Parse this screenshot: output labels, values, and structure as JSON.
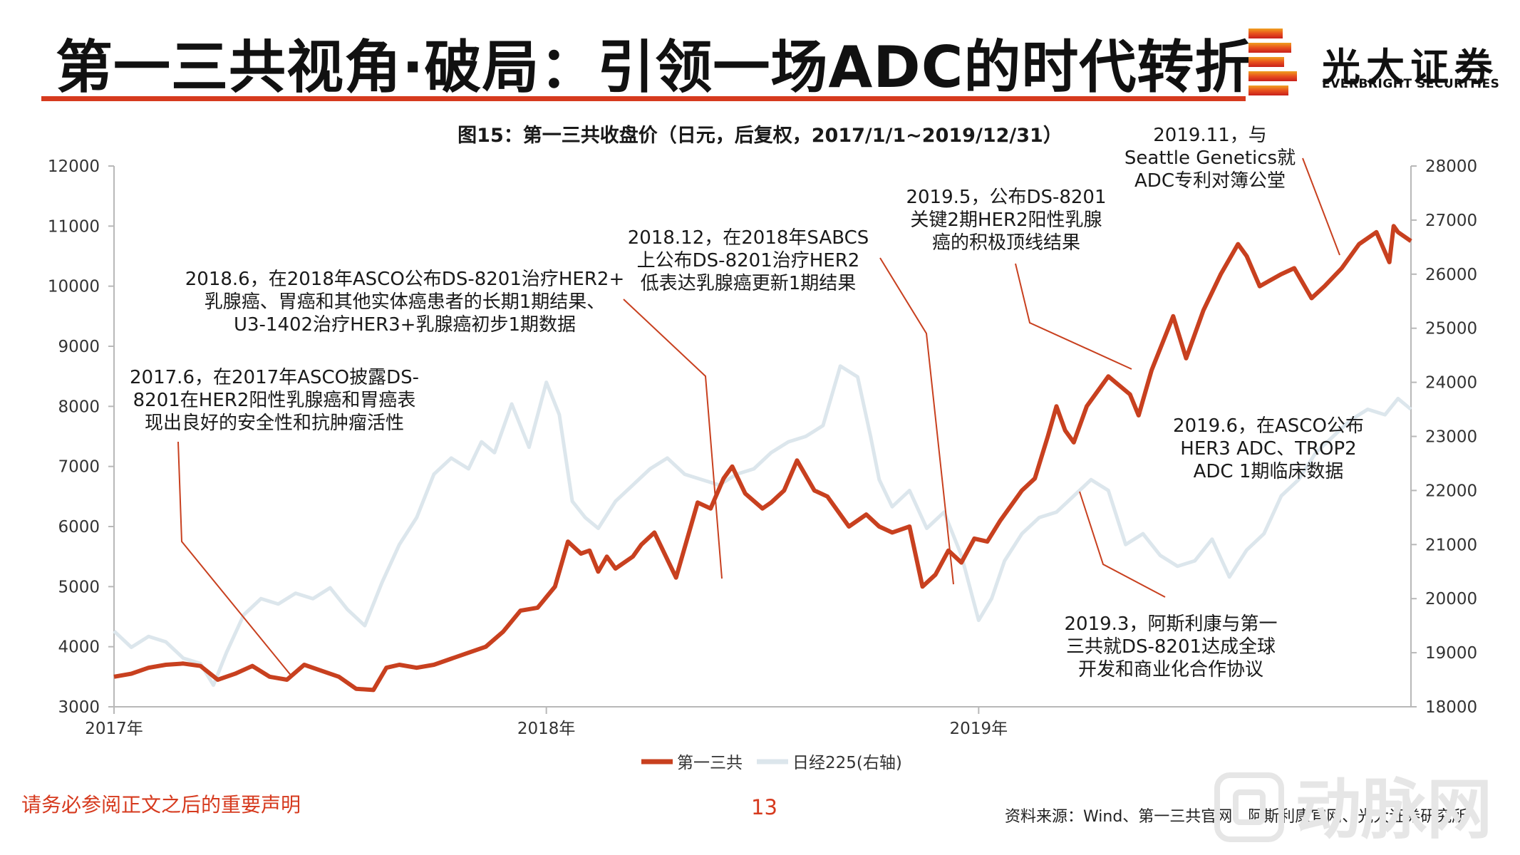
{
  "header": {
    "title": "第一三共视角·破局：引领一场ADC的时代转折",
    "logo_cn": "光大证券",
    "logo_en": "EVERBRIGHT SECURITIES"
  },
  "colors": {
    "brand_red": "#d63a1e",
    "series_main": "#c8401f",
    "series_index": "#dce6ec",
    "axis": "#b8b8b8",
    "callout": "#c8401f"
  },
  "chart_data": {
    "type": "line",
    "title": "图15：第一三共收盘价（日元，后复权，2017/1/1~2019/12/31）",
    "x_ticks": [
      "2017年",
      "2018年",
      "2019年"
    ],
    "x_range": [
      2017.0,
      2020.0
    ],
    "y_left": {
      "range": [
        3000,
        12000
      ],
      "ticks": [
        3000,
        4000,
        5000,
        6000,
        7000,
        8000,
        9000,
        10000,
        11000,
        12000
      ]
    },
    "y_right": {
      "range": [
        18000,
        28000
      ],
      "ticks": [
        18000,
        19000,
        20000,
        21000,
        22000,
        23000,
        24000,
        25000,
        26000,
        27000,
        28000
      ]
    },
    "legend": {
      "position": "bottom",
      "items": [
        "第一三共",
        "日经225(右轴)"
      ]
    },
    "series": [
      {
        "name": "第一三共",
        "axis": "left",
        "x": [
          2017.0,
          2017.04,
          2017.08,
          2017.12,
          2017.16,
          2017.2,
          2017.24,
          2017.28,
          2017.32,
          2017.36,
          2017.4,
          2017.44,
          2017.48,
          2017.52,
          2017.56,
          2017.6,
          2017.63,
          2017.66,
          2017.7,
          2017.74,
          2017.78,
          2017.82,
          2017.86,
          2017.9,
          2017.94,
          2017.98,
          2018.02,
          2018.05,
          2018.08,
          2018.1,
          2018.12,
          2018.14,
          2018.16,
          2018.2,
          2018.22,
          2018.25,
          2018.3,
          2018.35,
          2018.38,
          2018.41,
          2018.43,
          2018.46,
          2018.5,
          2018.52,
          2018.55,
          2018.58,
          2018.62,
          2018.65,
          2018.7,
          2018.74,
          2018.77,
          2018.8,
          2018.84,
          2018.87,
          2018.9,
          2018.93,
          2018.96,
          2018.99,
          2019.02,
          2019.05,
          2019.08,
          2019.1,
          2019.13,
          2019.16,
          2019.18,
          2019.2,
          2019.22,
          2019.25,
          2019.3,
          2019.35,
          2019.37,
          2019.4,
          2019.45,
          2019.48,
          2019.52,
          2019.56,
          2019.6,
          2019.62,
          2019.65,
          2019.7,
          2019.73,
          2019.77,
          2019.8,
          2019.84,
          2019.88,
          2019.92,
          2019.95,
          2019.96,
          2019.97,
          2019.99,
          2020.0
        ],
        "values": [
          3500,
          3550,
          3650,
          3700,
          3720,
          3680,
          3450,
          3550,
          3680,
          3500,
          3450,
          3700,
          3600,
          3500,
          3300,
          3280,
          3650,
          3700,
          3650,
          3700,
          3800,
          3900,
          4000,
          4250,
          4600,
          4650,
          5000,
          5750,
          5550,
          5600,
          5250,
          5500,
          5300,
          5500,
          5700,
          5900,
          5150,
          6400,
          6300,
          6800,
          7000,
          6550,
          6300,
          6400,
          6600,
          7100,
          6600,
          6500,
          6000,
          6200,
          6000,
          5900,
          6000,
          5000,
          5200,
          5600,
          5400,
          5800,
          5750,
          6100,
          6400,
          6600,
          6800,
          7500,
          8000,
          7600,
          7400,
          8000,
          8500,
          8200,
          7850,
          8600,
          9500,
          8800,
          9600,
          10200,
          10700,
          10500,
          10000,
          10200,
          10300,
          9800,
          10000,
          10300,
          10700,
          10900,
          10400,
          11000,
          10900,
          10800,
          10750
        ]
      },
      {
        "name": "日经225(右轴)",
        "axis": "right",
        "x": [
          2017.0,
          2017.04,
          2017.08,
          2017.12,
          2017.16,
          2017.2,
          2017.23,
          2017.26,
          2017.3,
          2017.34,
          2017.38,
          2017.42,
          2017.46,
          2017.5,
          2017.54,
          2017.58,
          2017.62,
          2017.66,
          2017.7,
          2017.74,
          2017.78,
          2017.82,
          2017.85,
          2017.88,
          2017.92,
          2017.96,
          2018.0,
          2018.03,
          2018.06,
          2018.09,
          2018.12,
          2018.16,
          2018.2,
          2018.24,
          2018.28,
          2018.32,
          2018.36,
          2018.4,
          2018.44,
          2018.48,
          2018.52,
          2018.56,
          2018.6,
          2018.64,
          2018.68,
          2018.72,
          2018.75,
          2018.77,
          2018.8,
          2018.84,
          2018.88,
          2018.92,
          2018.96,
          2019.0,
          2019.03,
          2019.06,
          2019.1,
          2019.14,
          2019.18,
          2019.22,
          2019.26,
          2019.3,
          2019.34,
          2019.38,
          2019.42,
          2019.46,
          2019.5,
          2019.54,
          2019.58,
          2019.62,
          2019.66,
          2019.7,
          2019.74,
          2019.78,
          2019.82,
          2019.86,
          2019.9,
          2019.94,
          2019.97,
          2020.0
        ],
        "values": [
          19400,
          19100,
          19300,
          19200,
          18900,
          18800,
          18400,
          19000,
          19700,
          20000,
          19900,
          20100,
          20000,
          20200,
          19800,
          19500,
          20300,
          21000,
          21500,
          22300,
          22600,
          22400,
          22900,
          22700,
          23600,
          22800,
          24000,
          23400,
          21800,
          21500,
          21300,
          21800,
          22100,
          22400,
          22600,
          22300,
          22200,
          22100,
          22300,
          22400,
          22700,
          22900,
          23000,
          23200,
          24300,
          24100,
          23000,
          22200,
          21700,
          22000,
          21300,
          21600,
          20800,
          19600,
          20000,
          20700,
          21200,
          21500,
          21600,
          21900,
          22200,
          22000,
          21000,
          21200,
          20800,
          20600,
          20700,
          21100,
          20400,
          20900,
          21200,
          21900,
          22200,
          22700,
          23000,
          23300,
          23500,
          23400,
          23700,
          23500
        ]
      }
    ],
    "annotations": [
      {
        "id": "a1",
        "text": "2017.6，在2017年ASCO披露DS-8201在HER2阳性乳腺癌和胃癌表现出良好的安全性和抗肿瘤活性",
        "lines": [
          "2017.6，在2017年ASCO披露DS-",
          "8201在HER2阳性乳腺癌和胃癌表",
          "现出良好的安全性和抗肿瘤活性"
        ]
      },
      {
        "id": "a2",
        "text": "2018.6，在2018年ASCO公布DS-8201治疗HER2+乳腺癌、胃癌和其他实体癌患者的长期1期结果、U3-1402治疗HER3+乳腺癌初步1期数据",
        "lines": [
          "2018.6，在2018年ASCO公布DS-8201治疗HER2+",
          "乳腺癌、胃癌和其他实体癌患者的长期1期结果、",
          "U3-1402治疗HER3+乳腺癌初步1期数据"
        ]
      },
      {
        "id": "a3",
        "text": "2018.12，在2018年SABCS上公布DS-8201治疗HER2低表达乳腺癌更新1期结果",
        "lines": [
          "2018.12，在2018年SABCS",
          "上公布DS-8201治疗HER2",
          "低表达乳腺癌更新1期结果"
        ]
      },
      {
        "id": "a4",
        "text": "2019.5，公布DS-8201关键2期HER2阳性乳腺癌的积极顶线结果",
        "lines": [
          "2019.5，公布DS-8201",
          "关键2期HER2阳性乳腺",
          "癌的积极顶线结果"
        ]
      },
      {
        "id": "a5",
        "text": "2019.11，与Seattle Genetics就ADC专利对簿公堂",
        "lines": [
          "2019.11，与",
          "Seattle Genetics就",
          "ADC专利对簿公堂"
        ]
      },
      {
        "id": "a6",
        "text": "2019.6，在ASCO公布HER3 ADC、TROP2 ADC 1期临床数据",
        "lines": [
          "2019.6，在ASCO公布",
          "HER3 ADC、TROP2",
          "ADC 1期临床数据"
        ]
      },
      {
        "id": "a7",
        "text": "2019.3，阿斯利康与第一三共就DS-8201达成全球开发和商业化合作协议",
        "lines": [
          "2019.3，阿斯利康与第一",
          "三共就DS-8201达成全球",
          "开发和商业化合作协议"
        ]
      }
    ]
  },
  "footer": {
    "disclaimer": "请务必参阅正文之后的重要声明",
    "page_number": "13",
    "source": "资料来源：Wind、第一三共官网、阿斯利康官网、光大证券研究所",
    "watermark": "动脉网"
  }
}
